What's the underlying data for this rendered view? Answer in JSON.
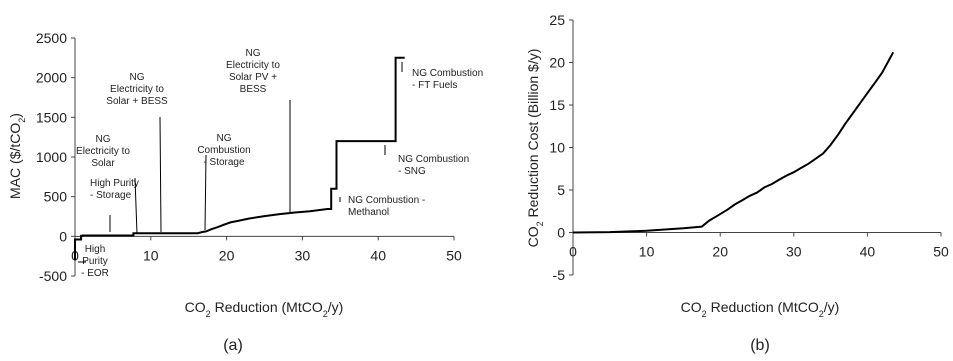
{
  "chart_data": [
    {
      "type": "line",
      "panel_label": "(a)",
      "xlabel_main": "CO",
      "xlabel_sub": "2",
      "xlabel_rest": " Reduction (MtCO",
      "xlabel_sub2": "2",
      "xlabel_end": "/y)",
      "ylabel_main": "MAC ($/tCO",
      "ylabel_sub": "2",
      "ylabel_end": ")",
      "xlim": [
        0,
        50
      ],
      "ylim": [
        -500,
        2500
      ],
      "xticks": [
        "0",
        "10",
        "20",
        "30",
        "40",
        "50"
      ],
      "yticks": [
        "-500",
        "0",
        "500",
        "1000",
        "1500",
        "2000",
        "2500"
      ],
      "x": [
        0,
        0,
        0.8,
        0.8,
        1.0,
        1.0,
        7.7,
        7.7,
        11.2,
        16.2,
        16.8,
        17.3,
        18.0,
        18.8,
        19.6,
        20.5,
        21.5,
        23,
        25,
        27,
        29,
        31,
        33.3,
        33.8,
        33.8,
        34.5,
        34.5,
        42.3,
        42.3,
        43.5
      ],
      "y": [
        -300,
        -40,
        -40,
        5,
        5,
        10,
        10,
        40,
        40,
        40,
        55,
        62,
        90,
        115,
        145,
        175,
        195,
        225,
        255,
        280,
        300,
        315,
        345,
        345,
        600,
        600,
        1200,
        1200,
        2250,
        2250
      ],
      "annotations": [
        {
          "lines": [
            "High",
            "Purity",
            "- EOR"
          ],
          "x": 0.4,
          "y": -300
        },
        {
          "lines": [
            "High Purity",
            "- Storage"
          ],
          "x": 1.0,
          "y": 5
        },
        {
          "lines": [
            "NG",
            "Electricity to",
            "Solar"
          ],
          "x": 7.7,
          "y": 25
        },
        {
          "lines": [
            "NG",
            "Electricity to",
            "Solar + BESS"
          ],
          "x": 11.2,
          "y": 40
        },
        {
          "lines": [
            "NG",
            "Combustion",
            "- Storage"
          ],
          "x": 16.8,
          "y": 55
        },
        {
          "lines": [
            "NG",
            "Electricity to",
            "Solar PV +",
            "BESS"
          ],
          "x": 28.5,
          "y": 300
        },
        {
          "lines": [
            "NG Combustion -",
            "Methanol"
          ],
          "x": 34.0,
          "y": 400
        },
        {
          "lines": [
            "NG Combustion",
            "- SNG"
          ],
          "x": 42.0,
          "y": 1200
        },
        {
          "lines": [
            "NG Combustion",
            "- FT Fuels"
          ],
          "x": 43.0,
          "y": 2250
        }
      ]
    },
    {
      "type": "line",
      "panel_label": "(b)",
      "xlabel_main": "CO",
      "xlabel_sub": "2",
      "xlabel_rest": " Reduction (MtCO",
      "xlabel_sub2": "2",
      "xlabel_end": "/y)",
      "ylabel_main": "CO",
      "ylabel_sub": "2",
      "ylabel_end": " Reduction Cost (Billion $/y)",
      "xlim": [
        0,
        50
      ],
      "ylim": [
        -5,
        25
      ],
      "xticks": [
        "0",
        "10",
        "20",
        "30",
        "40",
        "50"
      ],
      "yticks": [
        "-5",
        "0",
        "5",
        "10",
        "15",
        "20",
        "25"
      ],
      "x": [
        0,
        5,
        10,
        15,
        17.5,
        18.5,
        19.5,
        21,
        22,
        23,
        24,
        25,
        26,
        27,
        28,
        29,
        30,
        31,
        32,
        33,
        34,
        35,
        36,
        37,
        38,
        39,
        40,
        41,
        42,
        43.5
      ],
      "y": [
        0,
        0.05,
        0.2,
        0.5,
        0.7,
        1.4,
        1.9,
        2.7,
        3.3,
        3.8,
        4.3,
        4.7,
        5.3,
        5.7,
        6.2,
        6.7,
        7.1,
        7.6,
        8.1,
        8.7,
        9.3,
        10.3,
        11.5,
        12.8,
        14.0,
        15.2,
        16.4,
        17.6,
        18.8,
        21.2
      ]
    }
  ]
}
